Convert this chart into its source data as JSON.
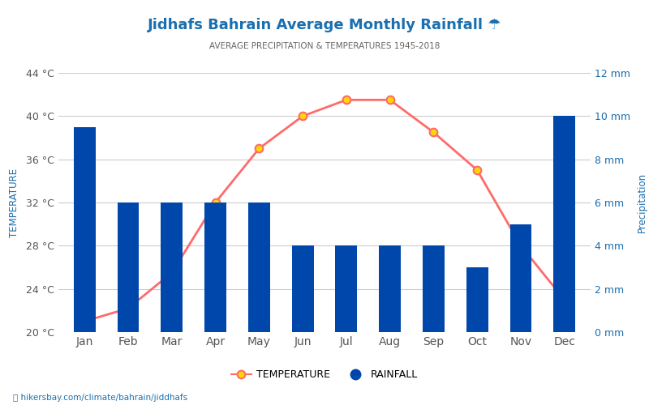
{
  "title": "Jidhafs Bahrain Average Monthly Rainfall ☂",
  "subtitle": "AVERAGE PRECIPITATION & TEMPERATURES 1945-2018",
  "months": [
    "Jan",
    "Feb",
    "Mar",
    "Apr",
    "May",
    "Jun",
    "Jul",
    "Aug",
    "Sep",
    "Oct",
    "Nov",
    "Dec"
  ],
  "rainfall_mm": [
    9.5,
    6.0,
    6.0,
    6.0,
    6.0,
    4.0,
    4.0,
    4.0,
    4.0,
    3.0,
    5.0,
    10.0
  ],
  "temperature_c": [
    21.0,
    22.2,
    25.5,
    32.0,
    37.0,
    40.0,
    41.5,
    41.5,
    38.5,
    35.0,
    28.0,
    23.0
  ],
  "bar_color": "#0047AB",
  "line_color": "#FF6B6B",
  "marker_face": "#FFD700",
  "marker_edge": "#FF6B6B",
  "title_color": "#1a6faf",
  "subtitle_color": "#666666",
  "axis_label_color": "#1a6faf",
  "tick_color": "#555555",
  "ylabel_left": "TEMPERATURE",
  "ylabel_right": "Precipitation",
  "ylim_left": [
    20,
    44
  ],
  "ylim_right": [
    0,
    12
  ],
  "yticks_left": [
    20,
    24,
    28,
    32,
    36,
    40,
    44
  ],
  "yticks_right": [
    0,
    2,
    4,
    6,
    8,
    10,
    12
  ],
  "background_color": "#ffffff",
  "grid_color": "#cccccc",
  "watermark": "hikersbay.com/climate/bahrain/jiddhafs"
}
